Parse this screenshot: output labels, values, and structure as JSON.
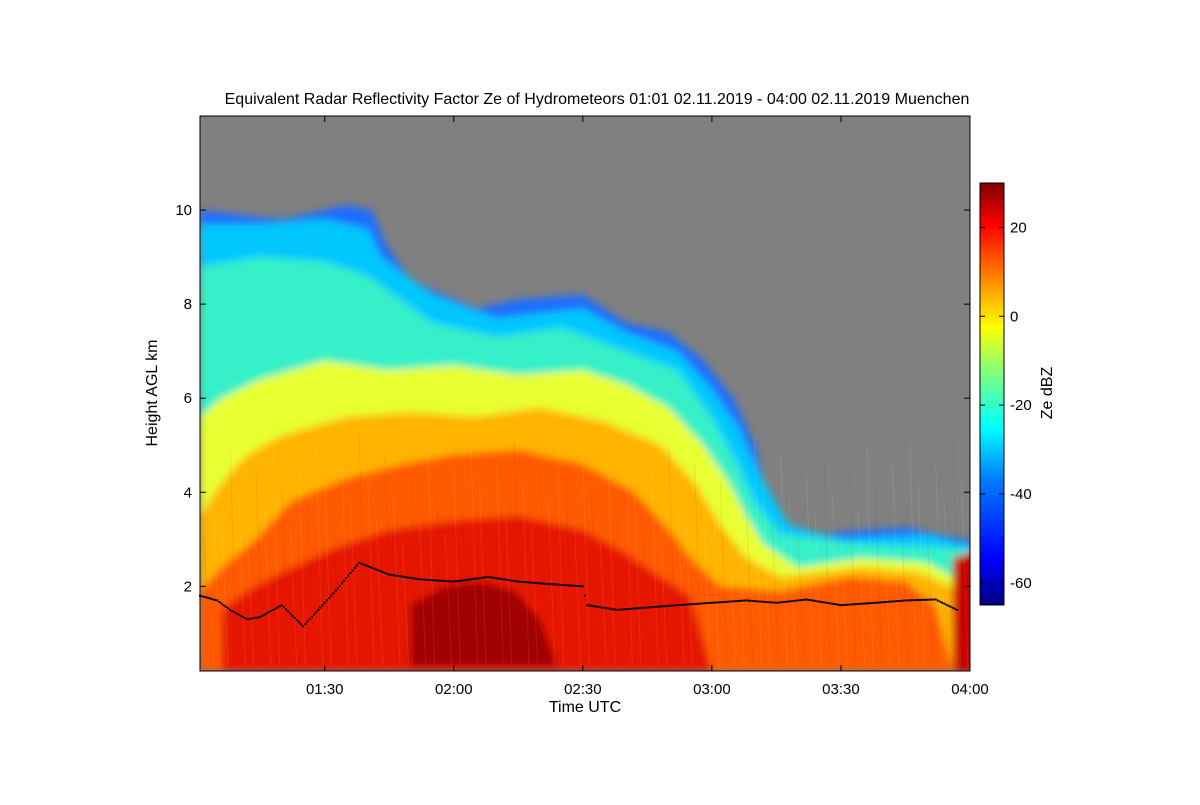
{
  "chart_data": {
    "type": "heatmap",
    "title": "Equivalent Radar Reflectivity Factor Ze of Hydrometeors   01:01 02.11.2019 - 04:00 02.11.2019 Muenchen",
    "xlabel": "Time UTC",
    "ylabel": "Height AGL km",
    "xlim": [
      "01:01",
      "04:00"
    ],
    "ylim": [
      0.2,
      12
    ],
    "x_ticks": [
      "01:30",
      "02:00",
      "02:30",
      "03:00",
      "03:30",
      "04:00"
    ],
    "y_ticks": [
      2,
      4,
      6,
      8,
      10
    ],
    "colorbar": {
      "label": "Ze dBZ",
      "range": [
        -65,
        30
      ],
      "ticks": [
        20,
        0,
        -20,
        -40,
        -60
      ]
    },
    "no_signal_color": "#808080",
    "colormap": [
      "#00007f",
      "#0000ff",
      "#007fff",
      "#00ffff",
      "#7fff7f",
      "#ffff00",
      "#ff7f00",
      "#ff0000",
      "#7f0000"
    ],
    "cloud_base_series": {
      "x": [
        "01:01",
        "01:05",
        "01:08",
        "01:12",
        "01:15",
        "01:20",
        "01:25",
        "01:32",
        "01:38",
        "01:45",
        "01:52",
        "02:00",
        "02:08",
        "02:15",
        "02:22",
        "02:30",
        "02:31",
        "02:38",
        "02:45",
        "02:52",
        "03:00",
        "03:08",
        "03:15",
        "03:22",
        "03:30",
        "03:38",
        "03:45",
        "03:52",
        "03:57"
      ],
      "y": [
        1.8,
        1.7,
        1.5,
        1.3,
        1.35,
        1.6,
        1.15,
        1.85,
        2.5,
        2.25,
        2.15,
        2.1,
        2.2,
        2.1,
        2.05,
        2.0,
        1.6,
        1.5,
        1.55,
        1.6,
        1.65,
        1.7,
        1.65,
        1.72,
        1.6,
        1.65,
        1.7,
        1.72,
        1.5
      ]
    },
    "grid": false
  }
}
